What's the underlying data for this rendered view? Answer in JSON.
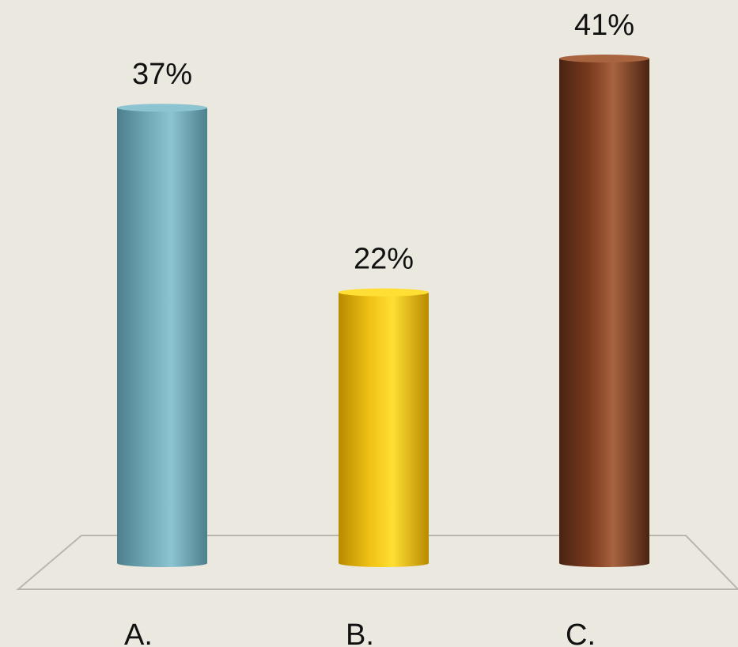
{
  "chart_data": {
    "type": "bar",
    "style": "3d-cylinder",
    "categories": [
      "A.",
      "B.",
      "C."
    ],
    "values": [
      37,
      22,
      41
    ],
    "value_labels": [
      "37%",
      "22%",
      "41%"
    ],
    "ylim": [
      0,
      41
    ],
    "grid": false,
    "legend": "none",
    "colors": {
      "bars": [
        {
          "dark": "#4d7f8c",
          "mid": "#72aab8",
          "light": "#8cc4d1"
        },
        {
          "dark": "#b88a00",
          "mid": "#f0c214",
          "light": "#ffdf33"
        },
        {
          "dark": "#4a2312",
          "mid": "#7c3c1f",
          "light": "#a8633f"
        }
      ],
      "floor_stroke": "#b9b6ad",
      "background": "#ebe8df"
    }
  }
}
